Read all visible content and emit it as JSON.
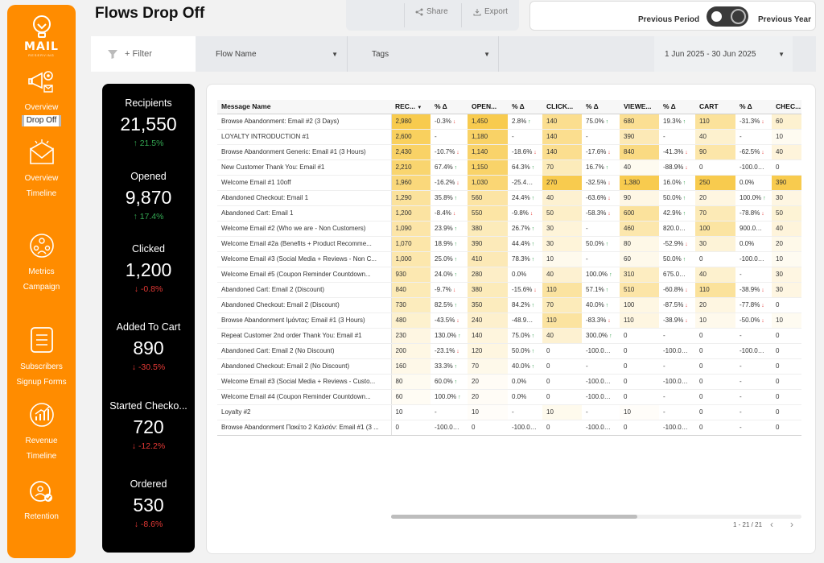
{
  "app": {
    "logo_text": "MAIL",
    "logo_sub": "RESERVING",
    "title": "Flows Drop Off"
  },
  "sidebar": {
    "groups": [
      {
        "icon": "megaphone-gear-icon",
        "items": [
          "Overview",
          "Drop Off"
        ],
        "active": 1
      },
      {
        "icon": "envelope-burst-icon",
        "items": [
          "Overview",
          "Timeline"
        ],
        "active": -1
      },
      {
        "icon": "people-network-icon",
        "items": [
          "Metrics",
          "Campaign"
        ],
        "active": -1
      },
      {
        "icon": "list-document-icon",
        "items": [
          "Subscribers",
          "Signup Forms"
        ],
        "active": -1
      },
      {
        "icon": "revenue-chart-icon",
        "items": [
          "Revenue",
          "Timeline"
        ],
        "active": -1
      },
      {
        "icon": "retention-icon",
        "items": [
          "Retention"
        ],
        "active": -1
      }
    ]
  },
  "toolbar": {
    "share_label": "Share",
    "export_label": "Export"
  },
  "period": {
    "left_label": "Previous Period",
    "right_label": "Previous Year"
  },
  "filters": {
    "add_label": "+ Filter",
    "flow_name": "Flow Name",
    "tags": "Tags",
    "date_range": "1 Jun 2025 - 30 Jun 2025"
  },
  "kpis": [
    {
      "label": "Recipients",
      "value": "21,550",
      "delta": "21.5%",
      "dir": "up"
    },
    {
      "label": "Opened",
      "value": "9,870",
      "delta": "17.4%",
      "dir": "up"
    },
    {
      "label": "Clicked",
      "value": "1,200",
      "delta": "-0.8%",
      "dir": "down"
    },
    {
      "label": "Added To Cart",
      "value": "890",
      "delta": "-30.5%",
      "dir": "down"
    },
    {
      "label": "Started Checko...",
      "value": "720",
      "delta": "-12.2%",
      "dir": "down"
    },
    {
      "label": "Ordered",
      "value": "530",
      "delta": "-8.6%",
      "dir": "down"
    }
  ],
  "table": {
    "headers": [
      "Message Name",
      "REC...",
      "% Δ",
      "OPEN...",
      "% Δ",
      "CLICK...",
      "% Δ",
      "VIEWE...",
      "% Δ",
      "CART",
      "% Δ",
      "CHEC..."
    ],
    "heat_max": [
      2980,
      1450,
      270,
      1380,
      250,
      390
    ],
    "rows": [
      [
        "Browse Abandonment: Email #2 (3 Days)",
        "2,980",
        "-0.3%",
        "1,450",
        "2.8%",
        "140",
        "75.0%",
        "680",
        "19.3%",
        "110",
        "-31.3%",
        "60"
      ],
      [
        "LOYALTY INTRODUCTION #1",
        "2,600",
        "-",
        "1,180",
        "-",
        "140",
        "-",
        "390",
        "-",
        "40",
        "-",
        "10"
      ],
      [
        "Browse Abandonment Generic: Email #1 (3 Hours)",
        "2,430",
        "-10.7%",
        "1,140",
        "-18.6%",
        "140",
        "-17.6%",
        "840",
        "-41.3%",
        "90",
        "-62.5%",
        "40"
      ],
      [
        "New Customer Thank You: Email #1",
        "2,210",
        "67.4%",
        "1,150",
        "64.3%",
        "70",
        "16.7%",
        "40",
        "-88.9%",
        "0",
        "-100.0%...",
        "0"
      ],
      [
        "Welcome Email #1 10off",
        "1,960",
        "-16.2%",
        "1,030",
        "-25.4%...",
        "270",
        "-32.5%",
        "1,380",
        "16.0%",
        "250",
        "0.0%",
        "390"
      ],
      [
        "Abandoned Checkout: Email 1",
        "1,290",
        "35.8%",
        "560",
        "24.4%",
        "40",
        "-63.6%",
        "90",
        "50.0%",
        "20",
        "100.0%",
        "30"
      ],
      [
        "Abandoned Cart: Email 1",
        "1,200",
        "-8.4%",
        "550",
        "-9.8%",
        "50",
        "-58.3%",
        "600",
        "42.9%",
        "70",
        "-78.8%",
        "50"
      ],
      [
        "Welcome Email #2 (Who we are - Non Customers)",
        "1,090",
        "23.9%",
        "380",
        "26.7%",
        "30",
        "-",
        "460",
        "820.0%...",
        "100",
        "900.0%...",
        "40"
      ],
      [
        "Welcome Email #2a (Benefits + Product Recomme...",
        "1,070",
        "18.9%",
        "390",
        "44.4%",
        "30",
        "50.0%",
        "80",
        "-52.9%",
        "30",
        "0.0%",
        "20"
      ],
      [
        "Welcome Email #3 (Social Media + Reviews - Non C...",
        "1,000",
        "25.0%",
        "410",
        "78.3%",
        "10",
        "-",
        "60",
        "50.0%",
        "0",
        "-100.0%...",
        "10"
      ],
      [
        "Welcome Email #5 (Coupon Reminder Countdown...",
        "930",
        "24.0%",
        "280",
        "0.0%",
        "40",
        "100.0%",
        "310",
        "675.0%...",
        "40",
        "-",
        "30"
      ],
      [
        "Abandoned Cart: Email 2 (Discount)",
        "840",
        "-9.7%",
        "380",
        "-15.6%",
        "110",
        "57.1%",
        "510",
        "-60.8%",
        "110",
        "-38.9%",
        "30"
      ],
      [
        "Abandoned Checkout: Email 2 (Discount)",
        "730",
        "82.5%",
        "350",
        "84.2%",
        "70",
        "40.0%",
        "100",
        "-87.5%",
        "20",
        "-77.8%",
        "0"
      ],
      [
        "Browse Abandonment Ιμάντας: Email #1 (3 Hours)",
        "480",
        "-43.5%",
        "240",
        "-48.9%...",
        "110",
        "-83.3%",
        "110",
        "-38.9%",
        "10",
        "-50.0%",
        "10"
      ],
      [
        "Repeat Customer 2nd order Thank You: Email #1",
        "230",
        "130.0%",
        "140",
        "75.0%",
        "40",
        "300.0%",
        "0",
        "-",
        "0",
        "-",
        "0"
      ],
      [
        "Abandoned Cart: Email 2 (No Discount)",
        "200",
        "-23.1%",
        "120",
        "50.0%",
        "0",
        "-100.0%...",
        "0",
        "-100.0%...",
        "0",
        "-100.0%...",
        "0"
      ],
      [
        "Abandoned Checkout: Email 2 (No Discount)",
        "160",
        "33.3%",
        "70",
        "40.0%",
        "0",
        "-",
        "0",
        "-",
        "0",
        "-",
        "0"
      ],
      [
        "Welcome Email #3 (Social Media + Reviews - Custo...",
        "80",
        "60.0%",
        "20",
        "0.0%",
        "0",
        "-100.0%...",
        "0",
        "-100.0%...",
        "0",
        "-",
        "0"
      ],
      [
        "Welcome Email #4 (Coupon Reminder Countdown...",
        "60",
        "100.0%",
        "20",
        "0.0%",
        "0",
        "-100.0%...",
        "0",
        "-",
        "0",
        "-",
        "0"
      ],
      [
        "Loyalty #2",
        "10",
        "-",
        "10",
        "-",
        "10",
        "-",
        "10",
        "-",
        "0",
        "-",
        "0"
      ],
      [
        "Browse Abandonment Πακέτο 2 Καλσόν: Email #1 (3 ...",
        "0",
        "-100.0%...",
        "0",
        "-100.0%...",
        "0",
        "-100.0%...",
        "0",
        "-100.0%...",
        "0",
        "-",
        "0"
      ]
    ]
  },
  "pagination": {
    "text": "1 - 21 / 21"
  },
  "colors": {
    "brand": "#ff8c00",
    "heat": "#f7c22f",
    "up": "#34a853",
    "down": "#e53935"
  }
}
